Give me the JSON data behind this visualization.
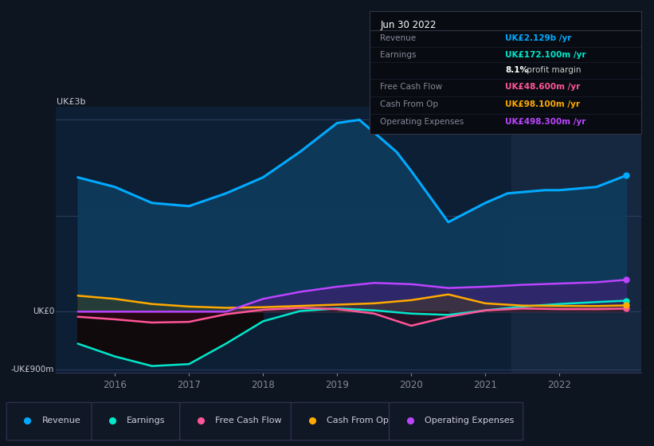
{
  "bg_color": "#0d1520",
  "chart_bg": "#0d1f35",
  "shade_color": "#162840",
  "title": "Jun 30 2022",
  "series": {
    "Revenue": {
      "color": "#00aaff",
      "fill_color": "#0a3a5c",
      "x": [
        2015.5,
        2016.0,
        2016.5,
        2017.0,
        2017.5,
        2018.0,
        2018.5,
        2019.0,
        2019.3,
        2019.8,
        2020.0,
        2020.5,
        2021.0,
        2021.3,
        2021.8,
        2022.0,
        2022.5,
        2022.9
      ],
      "y": [
        2100,
        1950,
        1700,
        1650,
        1850,
        2100,
        2500,
        2950,
        3000,
        2500,
        2200,
        1400,
        1700,
        1850,
        1900,
        1900,
        1950,
        2129
      ]
    },
    "Earnings": {
      "color": "#00e8cc",
      "x": [
        2015.5,
        2016.0,
        2016.5,
        2017.0,
        2017.5,
        2018.0,
        2018.5,
        2019.0,
        2019.5,
        2020.0,
        2020.5,
        2021.0,
        2021.5,
        2022.0,
        2022.5,
        2022.9
      ],
      "y": [
        -500,
        -700,
        -850,
        -820,
        -500,
        -150,
        10,
        50,
        20,
        -30,
        -50,
        20,
        80,
        120,
        150,
        172
      ]
    },
    "Free Cash Flow": {
      "color": "#ff5599",
      "x": [
        2015.5,
        2016.0,
        2016.5,
        2017.0,
        2017.5,
        2018.0,
        2018.5,
        2019.0,
        2019.5,
        2020.0,
        2020.5,
        2021.0,
        2021.5,
        2022.0,
        2022.5,
        2022.9
      ],
      "y": [
        -80,
        -120,
        -170,
        -160,
        -40,
        30,
        60,
        40,
        -30,
        -220,
        -80,
        20,
        50,
        40,
        40,
        48.6
      ]
    },
    "Cash From Op": {
      "color": "#ffaa00",
      "x": [
        2015.5,
        2016.0,
        2016.5,
        2017.0,
        2017.5,
        2018.0,
        2018.5,
        2019.0,
        2019.5,
        2020.0,
        2020.5,
        2021.0,
        2021.5,
        2022.0,
        2022.5,
        2022.9
      ],
      "y": [
        250,
        200,
        120,
        80,
        60,
        70,
        90,
        110,
        130,
        180,
        270,
        130,
        95,
        90,
        88,
        98.1
      ]
    },
    "Operating Expenses": {
      "color": "#bb44ff",
      "x": [
        2015.5,
        2016.0,
        2016.5,
        2017.0,
        2017.5,
        2018.0,
        2018.5,
        2019.0,
        2019.5,
        2020.0,
        2020.5,
        2021.0,
        2021.5,
        2022.0,
        2022.5,
        2022.9
      ],
      "y": [
        0,
        0,
        0,
        0,
        0,
        200,
        310,
        390,
        450,
        430,
        370,
        390,
        420,
        440,
        460,
        498.3
      ]
    }
  },
  "xmin": 2015.2,
  "xmax": 2023.1,
  "ymin": -950,
  "ymax": 3200,
  "shade_start": 2021.35,
  "xtick_years": [
    2016,
    2017,
    2018,
    2019,
    2020,
    2021,
    2022
  ],
  "grid_lines": [
    -900,
    0,
    1500,
    3000
  ],
  "info_box": {
    "title": "Jun 30 2022",
    "rows": [
      {
        "label": "Revenue",
        "value": "UK£2.129b /yr",
        "value_color": "#00aaff"
      },
      {
        "label": "Earnings",
        "value": "UK£172.100m /yr",
        "value_color": "#00e8cc"
      },
      {
        "label": "",
        "value": "8.1%",
        "value_color": "#ffffff",
        "suffix": " profit margin",
        "suffix_color": "#cccccc"
      },
      {
        "label": "Free Cash Flow",
        "value": "UK£48.600m /yr",
        "value_color": "#ff5599"
      },
      {
        "label": "Cash From Op",
        "value": "UK£98.100m /yr",
        "value_color": "#ffaa00"
      },
      {
        "label": "Operating Expenses",
        "value": "UK£498.300m /yr",
        "value_color": "#bb44ff"
      }
    ]
  },
  "legend_items": [
    {
      "label": "Revenue",
      "color": "#00aaff"
    },
    {
      "label": "Earnings",
      "color": "#00e8cc"
    },
    {
      "label": "Free Cash Flow",
      "color": "#ff5599"
    },
    {
      "label": "Cash From Op",
      "color": "#ffaa00"
    },
    {
      "label": "Operating Expenses",
      "color": "#bb44ff"
    }
  ]
}
